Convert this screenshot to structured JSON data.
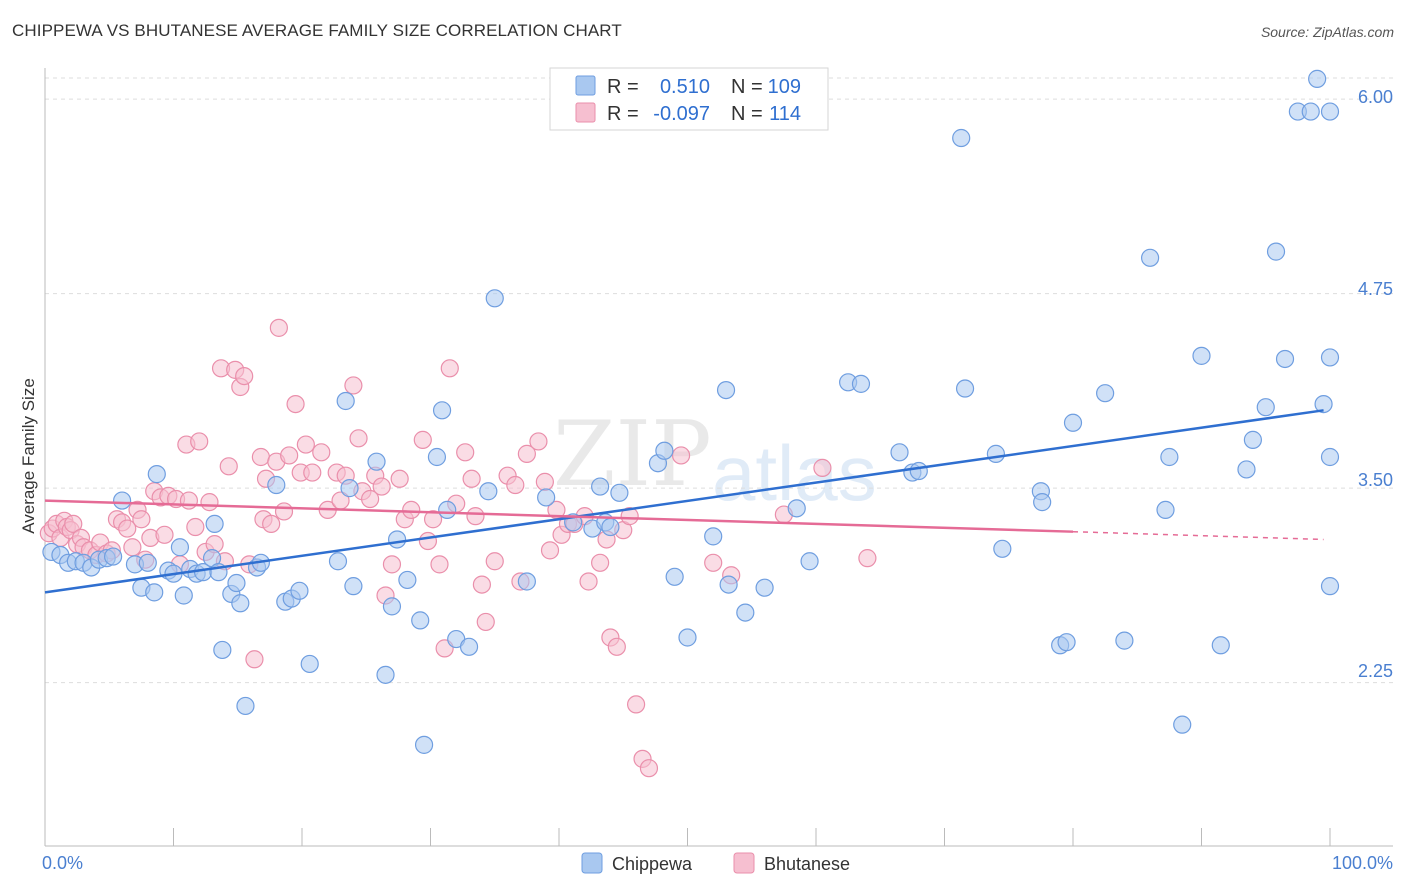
{
  "title": "CHIPPEWA VS BHUTANESE AVERAGE FAMILY SIZE CORRELATION CHART",
  "source": "Source: ZipAtlas.com",
  "watermark": {
    "part1": "ZIP",
    "part2": "atlas"
  },
  "colors": {
    "chippewa_fill": "#a9c8f0",
    "chippewa_stroke": "#6f9ee0",
    "chippewa_line": "#2f6fd0",
    "bhutanese_fill": "#f6bfd0",
    "bhutanese_stroke": "#ea8fab",
    "bhutanese_line": "#e56b96",
    "axis_text": "#4a7fd0",
    "grid": "#dddddd"
  },
  "legend": {
    "rows": [
      {
        "series": "Chippewa",
        "r_label": "R =",
        "r_value": "0.510",
        "n_label": "N =",
        "n_value": "109"
      },
      {
        "series": "Bhutanese",
        "r_label": "R =",
        "r_value": "-0.097",
        "n_label": "N =",
        "n_value": "114"
      }
    ]
  },
  "bottom_legend": [
    "Chippewa",
    "Bhutanese"
  ],
  "chart_data": {
    "type": "scatter",
    "title": "CHIPPEWA VS BHUTANESE AVERAGE FAMILY SIZE CORRELATION CHART",
    "xlabel": "",
    "ylabel": "Average Family Size",
    "xlim": [
      0,
      100
    ],
    "ylim": [
      1.2,
      6.2
    ],
    "x_tick_labels": [
      "0.0%",
      "100.0%"
    ],
    "y_ticks": [
      2.25,
      3.5,
      4.75,
      6.0
    ],
    "y_tick_labels": [
      "2.25",
      "3.50",
      "4.75",
      "6.00"
    ],
    "grid": true,
    "series": [
      {
        "name": "Chippewa",
        "r": 0.51,
        "n": 109,
        "trend": {
          "x": [
            0,
            99.5
          ],
          "y": [
            2.83,
            4.0
          ]
        },
        "points": [
          [
            0.5,
            3.09
          ],
          [
            1.2,
            3.07
          ],
          [
            1.8,
            3.02
          ],
          [
            2.4,
            3.03
          ],
          [
            3.0,
            3.02
          ],
          [
            3.6,
            2.99
          ],
          [
            4.2,
            3.04
          ],
          [
            4.8,
            3.05
          ],
          [
            5.3,
            3.06
          ],
          [
            6.0,
            3.42
          ],
          [
            7.0,
            3.01
          ],
          [
            7.5,
            2.86
          ],
          [
            8.0,
            3.02
          ],
          [
            8.5,
            2.83
          ],
          [
            8.7,
            3.59
          ],
          [
            9.6,
            2.97
          ],
          [
            10.0,
            2.95
          ],
          [
            10.5,
            3.12
          ],
          [
            10.8,
            2.81
          ],
          [
            11.3,
            2.98
          ],
          [
            11.8,
            2.95
          ],
          [
            12.3,
            2.96
          ],
          [
            13.0,
            3.05
          ],
          [
            13.2,
            3.27
          ],
          [
            13.5,
            2.96
          ],
          [
            13.8,
            2.46
          ],
          [
            14.5,
            2.82
          ],
          [
            14.9,
            2.89
          ],
          [
            15.2,
            2.76
          ],
          [
            15.6,
            2.1
          ],
          [
            16.5,
            2.99
          ],
          [
            16.8,
            3.02
          ],
          [
            18.0,
            3.52
          ],
          [
            18.7,
            2.77
          ],
          [
            19.2,
            2.79
          ],
          [
            19.8,
            2.84
          ],
          [
            20.6,
            2.37
          ],
          [
            22.8,
            3.03
          ],
          [
            23.4,
            4.06
          ],
          [
            23.7,
            3.5
          ],
          [
            24.0,
            2.87
          ],
          [
            25.8,
            3.67
          ],
          [
            26.5,
            2.3
          ],
          [
            27.0,
            2.74
          ],
          [
            27.4,
            3.17
          ],
          [
            28.2,
            2.91
          ],
          [
            29.2,
            2.65
          ],
          [
            29.5,
            1.85
          ],
          [
            30.5,
            3.7
          ],
          [
            30.9,
            4.0
          ],
          [
            31.3,
            3.36
          ],
          [
            32.0,
            2.53
          ],
          [
            33.0,
            2.48
          ],
          [
            34.5,
            3.48
          ],
          [
            35.0,
            4.72
          ],
          [
            37.5,
            2.9
          ],
          [
            39.0,
            3.44
          ],
          [
            41.1,
            3.28
          ],
          [
            42.6,
            3.24
          ],
          [
            43.2,
            3.51
          ],
          [
            43.6,
            3.28
          ],
          [
            44.0,
            3.25
          ],
          [
            44.7,
            3.47
          ],
          [
            47.7,
            3.66
          ],
          [
            48.2,
            3.74
          ],
          [
            49.0,
            2.93
          ],
          [
            50.0,
            2.54
          ],
          [
            52.0,
            3.19
          ],
          [
            53.0,
            4.13
          ],
          [
            53.2,
            2.88
          ],
          [
            54.5,
            2.7
          ],
          [
            56.0,
            2.86
          ],
          [
            58.5,
            3.37
          ],
          [
            59.5,
            3.03
          ],
          [
            62.5,
            4.18
          ],
          [
            63.5,
            4.17
          ],
          [
            66.5,
            3.73
          ],
          [
            67.5,
            3.6
          ],
          [
            68.0,
            3.61
          ],
          [
            71.3,
            5.75
          ],
          [
            71.6,
            4.14
          ],
          [
            74.0,
            3.72
          ],
          [
            74.5,
            3.11
          ],
          [
            77.5,
            3.48
          ],
          [
            77.6,
            3.41
          ],
          [
            79.0,
            2.49
          ],
          [
            79.5,
            2.51
          ],
          [
            80.0,
            3.92
          ],
          [
            82.5,
            4.11
          ],
          [
            84.0,
            2.52
          ],
          [
            86.0,
            4.98
          ],
          [
            87.2,
            3.36
          ],
          [
            87.5,
            3.7
          ],
          [
            88.5,
            1.98
          ],
          [
            90.0,
            4.35
          ],
          [
            91.5,
            2.49
          ],
          [
            93.5,
            3.62
          ],
          [
            94.0,
            3.81
          ],
          [
            95.0,
            4.02
          ],
          [
            96.5,
            4.33
          ],
          [
            97.5,
            5.92
          ],
          [
            98.5,
            5.92
          ],
          [
            99.0,
            6.13
          ],
          [
            100.0,
            5.92
          ],
          [
            100.0,
            4.34
          ],
          [
            100.0,
            2.87
          ],
          [
            100.0,
            3.7
          ],
          [
            99.5,
            4.04
          ],
          [
            95.8,
            5.02
          ]
        ]
      },
      {
        "name": "Bhutanese",
        "r": -0.097,
        "n": 114,
        "trend": {
          "x": [
            0,
            80
          ],
          "y": [
            3.42,
            3.22
          ]
        },
        "trend_dashed": {
          "x": [
            80,
            99.5
          ],
          "y": [
            3.22,
            3.17
          ]
        },
        "points": [
          [
            0.3,
            3.21
          ],
          [
            0.6,
            3.24
          ],
          [
            0.9,
            3.27
          ],
          [
            1.2,
            3.18
          ],
          [
            1.5,
            3.29
          ],
          [
            1.7,
            3.25
          ],
          [
            2.0,
            3.23
          ],
          [
            2.2,
            3.27
          ],
          [
            2.5,
            3.14
          ],
          [
            2.8,
            3.18
          ],
          [
            3.0,
            3.12
          ],
          [
            3.5,
            3.1
          ],
          [
            4.0,
            3.07
          ],
          [
            4.3,
            3.15
          ],
          [
            4.8,
            3.08
          ],
          [
            5.2,
            3.1
          ],
          [
            5.6,
            3.3
          ],
          [
            6.0,
            3.28
          ],
          [
            6.4,
            3.24
          ],
          [
            6.8,
            3.12
          ],
          [
            7.2,
            3.36
          ],
          [
            7.5,
            3.3
          ],
          [
            7.8,
            3.04
          ],
          [
            8.2,
            3.18
          ],
          [
            8.5,
            3.48
          ],
          [
            9.0,
            3.44
          ],
          [
            9.3,
            3.2
          ],
          [
            9.6,
            3.45
          ],
          [
            10.2,
            3.43
          ],
          [
            10.5,
            3.01
          ],
          [
            11.0,
            3.78
          ],
          [
            11.2,
            3.42
          ],
          [
            11.7,
            3.25
          ],
          [
            12.0,
            3.8
          ],
          [
            12.5,
            3.09
          ],
          [
            12.8,
            3.41
          ],
          [
            13.2,
            3.14
          ],
          [
            13.7,
            4.27
          ],
          [
            14.0,
            3.03
          ],
          [
            14.3,
            3.64
          ],
          [
            14.8,
            4.26
          ],
          [
            15.2,
            4.15
          ],
          [
            15.5,
            4.22
          ],
          [
            15.9,
            3.01
          ],
          [
            16.3,
            2.4
          ],
          [
            16.8,
            3.7
          ],
          [
            17.0,
            3.3
          ],
          [
            17.2,
            3.56
          ],
          [
            17.6,
            3.27
          ],
          [
            18.0,
            3.67
          ],
          [
            18.2,
            4.53
          ],
          [
            18.6,
            3.35
          ],
          [
            19.0,
            3.71
          ],
          [
            19.5,
            4.04
          ],
          [
            19.9,
            3.6
          ],
          [
            20.3,
            3.78
          ],
          [
            20.8,
            3.6
          ],
          [
            21.5,
            3.73
          ],
          [
            22.0,
            3.36
          ],
          [
            22.7,
            3.6
          ],
          [
            23.0,
            3.42
          ],
          [
            23.4,
            3.58
          ],
          [
            24.0,
            4.16
          ],
          [
            24.4,
            3.82
          ],
          [
            24.7,
            3.48
          ],
          [
            25.3,
            3.43
          ],
          [
            25.7,
            3.58
          ],
          [
            26.2,
            3.51
          ],
          [
            26.5,
            2.81
          ],
          [
            27.0,
            3.01
          ],
          [
            27.6,
            3.56
          ],
          [
            28.0,
            3.3
          ],
          [
            28.5,
            3.36
          ],
          [
            29.4,
            3.81
          ],
          [
            29.8,
            3.16
          ],
          [
            30.2,
            3.3
          ],
          [
            30.7,
            3.01
          ],
          [
            31.1,
            2.47
          ],
          [
            31.5,
            4.27
          ],
          [
            32.0,
            3.4
          ],
          [
            32.7,
            3.73
          ],
          [
            33.2,
            3.56
          ],
          [
            33.5,
            3.32
          ],
          [
            34.0,
            2.88
          ],
          [
            34.3,
            2.64
          ],
          [
            35.0,
            3.03
          ],
          [
            36.0,
            3.58
          ],
          [
            36.6,
            3.52
          ],
          [
            37.0,
            2.9
          ],
          [
            37.5,
            3.72
          ],
          [
            38.4,
            3.8
          ],
          [
            38.9,
            3.54
          ],
          [
            39.3,
            3.1
          ],
          [
            39.8,
            3.36
          ],
          [
            40.2,
            3.2
          ],
          [
            40.7,
            3.27
          ],
          [
            41.2,
            3.27
          ],
          [
            42.0,
            3.32
          ],
          [
            42.3,
            2.9
          ],
          [
            43.2,
            3.02
          ],
          [
            43.7,
            3.17
          ],
          [
            44.0,
            2.54
          ],
          [
            44.5,
            2.48
          ],
          [
            45.0,
            3.23
          ],
          [
            45.5,
            3.32
          ],
          [
            46.0,
            2.11
          ],
          [
            46.5,
            1.76
          ],
          [
            47.0,
            1.7
          ],
          [
            49.5,
            3.71
          ],
          [
            52.0,
            3.02
          ],
          [
            53.4,
            2.94
          ],
          [
            57.5,
            3.33
          ],
          [
            60.5,
            3.63
          ],
          [
            64.0,
            3.05
          ]
        ]
      }
    ]
  }
}
